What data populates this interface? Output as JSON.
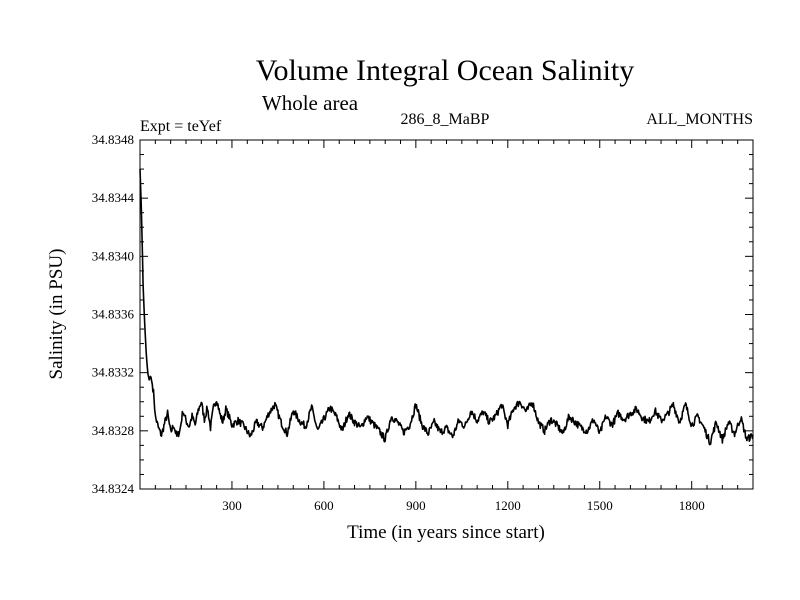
{
  "chart_data": {
    "type": "line",
    "title": "Volume Integral Ocean Salinity",
    "subtitle": "Whole area",
    "experiment_label": "Expt = teYef",
    "run_label": "286_8_MaBP",
    "months_label": "ALL_MONTHS",
    "xlabel": "Time (in years since start)",
    "ylabel": "Salinity (in PSU)",
    "xlim": [
      0,
      2000
    ],
    "ylim": [
      34.8324,
      34.8348
    ],
    "x_ticks": [
      300,
      600,
      900,
      1200,
      1500,
      1800
    ],
    "x_tick_labels": [
      "300",
      "600",
      "900",
      "1200",
      "1500",
      "1800"
    ],
    "y_ticks": [
      34.8324,
      34.8328,
      34.8332,
      34.8336,
      34.834,
      34.8344,
      34.8348
    ],
    "y_tick_labels": [
      "34.8324",
      "34.8328",
      "34.8332",
      "34.8336",
      "34.8340",
      "34.8344",
      "34.8348"
    ],
    "grid": false,
    "series": [
      {
        "name": "Salinity",
        "color": "#000000",
        "x": [
          0,
          5,
          10,
          15,
          20,
          25,
          30,
          35,
          40,
          45,
          50,
          60,
          70,
          80,
          90,
          100,
          110,
          120,
          130,
          140,
          150,
          160,
          170,
          180,
          190,
          200,
          210,
          220,
          230,
          240,
          250,
          260,
          270,
          280,
          290,
          300,
          320,
          340,
          360,
          380,
          400,
          420,
          440,
          460,
          480,
          500,
          520,
          540,
          560,
          580,
          600,
          620,
          640,
          660,
          680,
          700,
          720,
          740,
          760,
          780,
          800,
          820,
          840,
          860,
          880,
          900,
          920,
          940,
          960,
          980,
          1000,
          1020,
          1040,
          1060,
          1080,
          1100,
          1120,
          1140,
          1160,
          1180,
          1200,
          1220,
          1240,
          1260,
          1280,
          1300,
          1320,
          1340,
          1360,
          1380,
          1400,
          1420,
          1440,
          1460,
          1480,
          1500,
          1520,
          1540,
          1560,
          1580,
          1600,
          1620,
          1640,
          1660,
          1680,
          1700,
          1720,
          1740,
          1760,
          1780,
          1800,
          1820,
          1840,
          1860,
          1880,
          1900,
          1920,
          1940,
          1960,
          1980,
          2000
        ],
        "values": [
          34.8346,
          34.8343,
          34.8338,
          34.83355,
          34.83335,
          34.8332,
          34.83315,
          34.83318,
          34.83312,
          34.83305,
          34.8329,
          34.83282,
          34.83277,
          34.83285,
          34.83292,
          34.83279,
          34.83284,
          34.83276,
          34.8328,
          34.83294,
          34.83287,
          34.83283,
          34.8329,
          34.83284,
          34.83294,
          34.833,
          34.83288,
          34.83296,
          34.83282,
          34.83296,
          34.83302,
          34.83292,
          34.83286,
          34.83295,
          34.8329,
          34.83284,
          34.83287,
          34.83283,
          34.83276,
          34.83286,
          34.83282,
          34.83292,
          34.83298,
          34.83286,
          34.83278,
          34.83294,
          34.83287,
          34.83283,
          34.83296,
          34.8328,
          34.83288,
          34.83296,
          34.8329,
          34.8328,
          34.83292,
          34.83286,
          34.83282,
          34.8329,
          34.83285,
          34.8328,
          34.83274,
          34.8329,
          34.83286,
          34.83279,
          34.83284,
          34.83298,
          34.83284,
          34.83278,
          34.83286,
          34.83279,
          34.83282,
          34.83276,
          34.83287,
          34.83283,
          34.83294,
          34.83287,
          34.83293,
          34.83286,
          34.8329,
          34.83298,
          34.83284,
          34.83296,
          34.833,
          34.83293,
          34.833,
          34.83286,
          34.8328,
          34.83288,
          34.83284,
          34.83278,
          34.8329,
          34.83286,
          34.83282,
          34.8328,
          34.83288,
          34.83278,
          34.8329,
          34.83284,
          34.83292,
          34.83288,
          34.83292,
          34.83295,
          34.83289,
          34.83286,
          34.83294,
          34.83287,
          34.83291,
          34.83298,
          34.83286,
          34.83298,
          34.83284,
          34.8329,
          34.83282,
          34.83272,
          34.83286,
          34.83274,
          34.83286,
          34.83278,
          34.83289,
          34.83274,
          34.83277
        ]
      }
    ]
  }
}
